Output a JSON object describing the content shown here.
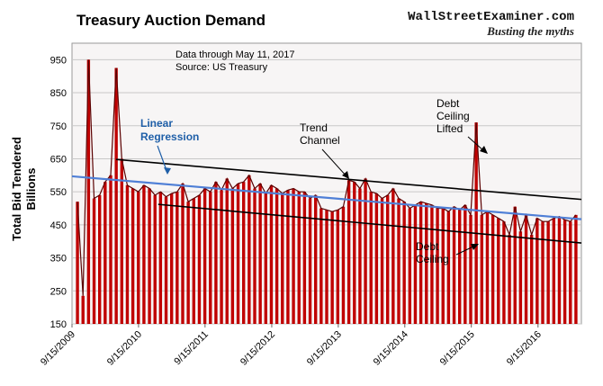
{
  "chart_data": {
    "type": "bar",
    "title": "Treasury Auction Demand",
    "note_line1": "Data through May 11, 2017",
    "note_line2": "Source: US Treasury",
    "brand_name": "WallStreetExaminer.com",
    "brand_tagline": "Busting the myths",
    "ylabel_line1": "Total Bid Tendered",
    "ylabel_line2": "Billions",
    "ylim": [
      150,
      1000
    ],
    "yticks": [
      150,
      250,
      350,
      450,
      550,
      650,
      750,
      850,
      950
    ],
    "x_start": "2009-09-15",
    "x_end": "2017-05-11",
    "xticks": [
      "9/15/2009",
      "9/15/2010",
      "9/15/2011",
      "9/15/2012",
      "9/15/2013",
      "9/15/2014",
      "9/15/2015",
      "9/15/2016"
    ],
    "grid": true,
    "colors": {
      "bar": "#c00000",
      "outline": "#5a0000",
      "regression": "#4f7fd6",
      "trend": "#000000",
      "plot_bg": "#f7f5f5",
      "title": "#000000",
      "annotation_blue": "#1f5fa8"
    },
    "series": [
      {
        "values": [
          520,
          235,
          950,
          530,
          540,
          580,
          600,
          925,
          650,
          570,
          560,
          550,
          570,
          560,
          540,
          550,
          535,
          545,
          550,
          575,
          520,
          530,
          540,
          560,
          550,
          580,
          555,
          590,
          560,
          575,
          580,
          600,
          560,
          575,
          545,
          570,
          560,
          545,
          555,
          560,
          550,
          550,
          530,
          540,
          500,
          495,
          490,
          495,
          505,
          585,
          580,
          560,
          590,
          550,
          545,
          530,
          540,
          560,
          530,
          520,
          500,
          510,
          520,
          515,
          510,
          500,
          500,
          490,
          505,
          495,
          510,
          480,
          760,
          480,
          490,
          480,
          470,
          460,
          420,
          505,
          430,
          480,
          420,
          470,
          460,
          460,
          470,
          475,
          465,
          460,
          480
        ]
      }
    ],
    "regression": {
      "label_line1": "Linear",
      "label_line2": "Regression",
      "start": [
        "2009-09-15",
        597
      ],
      "end": [
        "2017-05-11",
        467
      ]
    },
    "trend_upper": {
      "start": [
        "2010-05-15",
        648
      ],
      "end": [
        "2017-05-11",
        527
      ]
    },
    "trend_lower": {
      "start": [
        "2011-01-01",
        512
      ],
      "end": [
        "2017-05-11",
        395
      ]
    },
    "annotations": [
      {
        "id": "trend-channel",
        "lines": [
          "Trend",
          "Channel"
        ]
      },
      {
        "id": "debt-ceiling-lifted",
        "lines": [
          "Debt",
          "Ceiling",
          "Lifted"
        ]
      },
      {
        "id": "debt-ceiling",
        "lines": [
          "Debt",
          "Ceiling"
        ]
      }
    ]
  }
}
